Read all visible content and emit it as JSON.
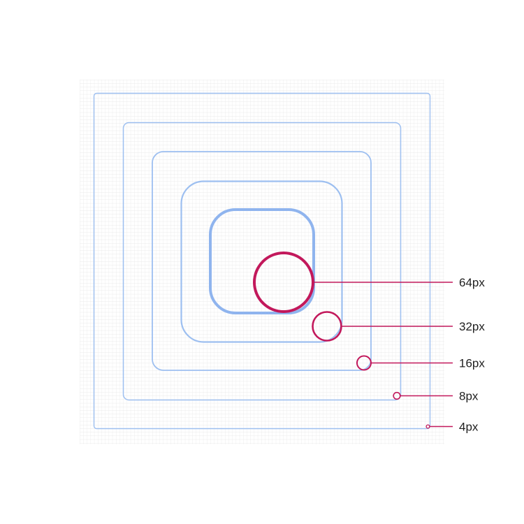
{
  "colors": {
    "grid": "#e4e4e4",
    "square": "#9dbff0",
    "square_strong": "#8fb4ee",
    "accent": "#c2185b",
    "label": "#1f1f1f"
  },
  "radii": [
    {
      "label": "64px"
    },
    {
      "label": "32px"
    },
    {
      "label": "16px"
    },
    {
      "label": "8px"
    },
    {
      "label": "4px"
    }
  ]
}
